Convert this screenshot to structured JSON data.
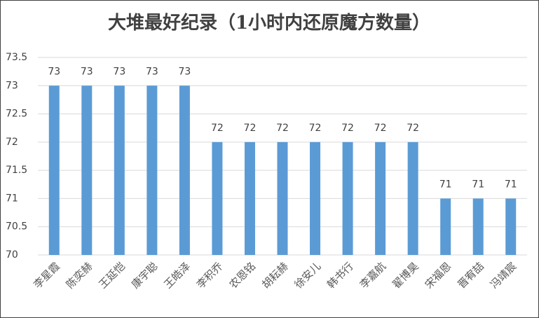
{
  "chart_data": {
    "type": "bar",
    "title": "大堆最好纪录（1小时内还原魔方数量）",
    "categories": [
      "李星霞",
      "陈奕赫",
      "王延恺",
      "康宇聪",
      "王皓泽",
      "李积乔",
      "农恩铭",
      "胡耘赫",
      "徐安儿",
      "韩书行",
      "李嘉航",
      "翟博昊",
      "宋福恩",
      "晋宥喆",
      "冯靖宸"
    ],
    "values": [
      73,
      73,
      73,
      73,
      73,
      72,
      72,
      72,
      72,
      72,
      72,
      72,
      71,
      71,
      71
    ],
    "color": "#5b9bd5",
    "ylim": [
      70,
      73.5
    ],
    "yticks": [
      70,
      70.5,
      71,
      71.5,
      72,
      72.5,
      73,
      73.5
    ],
    "grid": true
  }
}
